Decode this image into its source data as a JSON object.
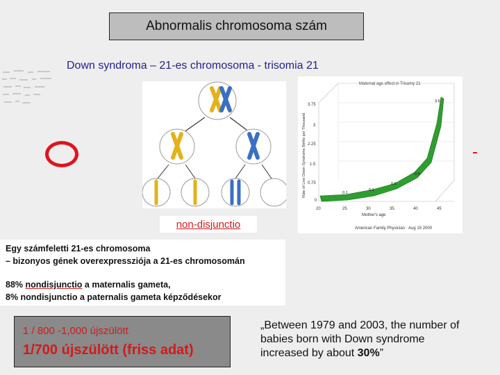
{
  "title": "Abnormalis chromosoma szám",
  "subtitle": "Down syndroma – 21-es chromosoma - trisomia 21",
  "label_nondisjunction": "non-disjunctio",
  "graph": {
    "title": "Maternal age effect in Trisomy 21",
    "ylabel": "Rate of Live Down Syndrome Births per Thousand",
    "xlabel": "Mother's age",
    "source": "American Family Physician · Aug 15 2000",
    "y_ticks": [
      "3.75",
      "3",
      "2.25",
      "1.5",
      "0.75",
      "0"
    ],
    "x_ticks": [
      "20",
      "25",
      "30",
      "35",
      "40",
      "45"
    ],
    "point_labels": [
      "0.1",
      "0.2",
      "0.5",
      "0.9",
      "3.6"
    ],
    "color": "#2e9e2e"
  },
  "info": {
    "line1": "Egy számfeletti 21-es chromosoma",
    "line2": "– bizonyos gének overexpressziója a 21-es chromosomán",
    "line3_prefix": "88% ",
    "line3_emph": "nondisjunctio",
    "line3_suffix": " a maternalis gameta,",
    "line4": "8% nondisjunctio a paternalis gameta képződésekor"
  },
  "stats": {
    "line1": "1 / 800 -1,000 újszülött",
    "line2": "1/700 újszülött (friss adat)"
  },
  "quote": {
    "line1": "„Between 1979 and 2003, the number of",
    "line2": "babies born with Down syndrome",
    "line3_prefix": "increased by about ",
    "line3_emph": "30%",
    "line3_suffix": "”"
  },
  "colors": {
    "accent_red": "#d11a1a",
    "chromosome_blue": "#3a6fc4",
    "chromosome_yellow": "#e3b21c",
    "curve_green": "#2e9e2e"
  }
}
